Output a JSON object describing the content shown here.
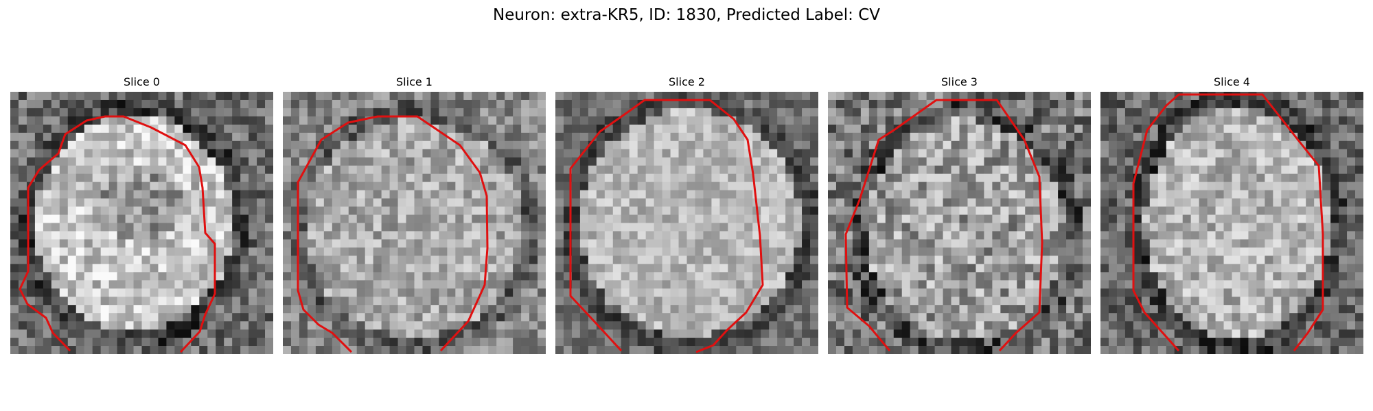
{
  "figure": {
    "title": "Neuron: extra-KR5, ID: 1830, Predicted Label: CV"
  },
  "panels": [
    {
      "title": "Slice 0"
    },
    {
      "title": "Slice 1"
    },
    {
      "title": "Slice 2"
    },
    {
      "title": "Slice 3"
    },
    {
      "title": "Slice 4"
    }
  ],
  "colors": {
    "contour": "#e01010"
  }
}
